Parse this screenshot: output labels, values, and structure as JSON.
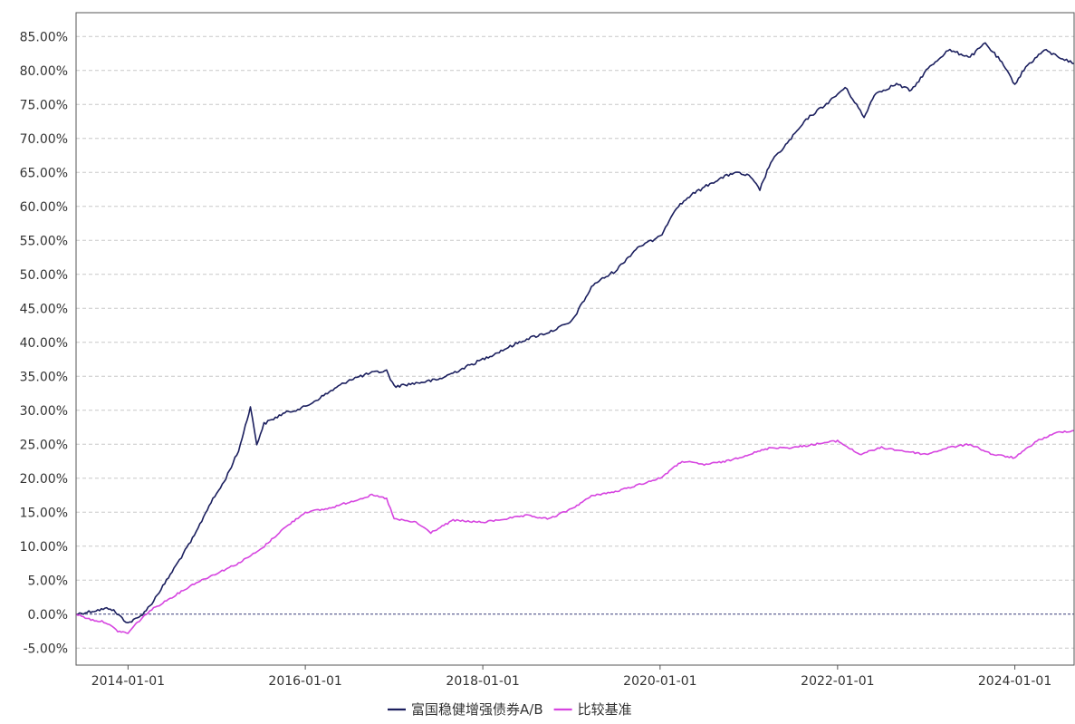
{
  "chart_data": {
    "type": "line",
    "title": "",
    "xlabel": "",
    "ylabel": "",
    "x_ticks": [
      "2014-01-01",
      "2016-01-01",
      "2018-01-01",
      "2020-01-01",
      "2022-01-01",
      "2024-01-01"
    ],
    "y_ticks": [
      "-5.00%",
      "0.00%",
      "5.00%",
      "10.00%",
      "15.00%",
      "20.00%",
      "25.00%",
      "30.00%",
      "35.00%",
      "40.00%",
      "45.00%",
      "50.00%",
      "55.00%",
      "60.00%",
      "65.00%",
      "70.00%",
      "75.00%",
      "80.00%",
      "85.00%"
    ],
    "xlim": [
      "2013-06-01",
      "2024-09-01"
    ],
    "ylim": [
      -7.5,
      88.5
    ],
    "grid": "horizontal dashed",
    "legend_position": "bottom-center",
    "colors": {
      "fund": "#1b1f5e",
      "benchmark": "#d645e0",
      "zero_line": "#3a3f7a",
      "grid": "#c8c8c8",
      "axis": "#555555"
    },
    "series": [
      {
        "name": "富国稳健增强债券A/B",
        "color": "#1b1f5e",
        "points": [
          [
            "2013-06-01",
            0.0
          ],
          [
            "2013-08-15",
            0.5
          ],
          [
            "2013-10-20",
            0.9
          ],
          [
            "2013-12-15",
            -0.8
          ],
          [
            "2014-01-01",
            -1.3
          ],
          [
            "2014-02-15",
            -0.5
          ],
          [
            "2014-04-01",
            1.2
          ],
          [
            "2014-06-01",
            4.5
          ],
          [
            "2014-08-01",
            8.0
          ],
          [
            "2014-10-01",
            11.5
          ],
          [
            "2014-12-01",
            16.0
          ],
          [
            "2015-02-01",
            19.5
          ],
          [
            "2015-04-01",
            24.0
          ],
          [
            "2015-05-20",
            30.5
          ],
          [
            "2015-06-15",
            25.0
          ],
          [
            "2015-07-15",
            28.0
          ],
          [
            "2015-10-01",
            29.5
          ],
          [
            "2016-01-01",
            30.5
          ],
          [
            "2016-04-01",
            32.5
          ],
          [
            "2016-07-01",
            34.5
          ],
          [
            "2016-10-01",
            35.5
          ],
          [
            "2016-12-01",
            35.8
          ],
          [
            "2017-01-01",
            33.5
          ],
          [
            "2017-04-01",
            34.0
          ],
          [
            "2017-07-01",
            34.5
          ],
          [
            "2017-10-01",
            36.0
          ],
          [
            "2018-01-01",
            37.5
          ],
          [
            "2018-04-01",
            39.0
          ],
          [
            "2018-07-01",
            40.5
          ],
          [
            "2018-10-01",
            41.5
          ],
          [
            "2019-01-01",
            43.0
          ],
          [
            "2019-04-01",
            48.5
          ],
          [
            "2019-07-01",
            50.5
          ],
          [
            "2019-10-01",
            54.0
          ],
          [
            "2020-01-01",
            55.5
          ],
          [
            "2020-03-01",
            59.5
          ],
          [
            "2020-05-01",
            61.5
          ],
          [
            "2020-08-01",
            63.5
          ],
          [
            "2020-11-01",
            65.0
          ],
          [
            "2021-01-01",
            64.5
          ],
          [
            "2021-02-15",
            62.5
          ],
          [
            "2021-04-01",
            66.5
          ],
          [
            "2021-06-01",
            69.0
          ],
          [
            "2021-09-01",
            73.0
          ],
          [
            "2021-12-01",
            75.5
          ],
          [
            "2022-02-01",
            77.5
          ],
          [
            "2022-03-20",
            75.0
          ],
          [
            "2022-04-20",
            73.0
          ],
          [
            "2022-06-01",
            76.5
          ],
          [
            "2022-09-01",
            78.0
          ],
          [
            "2022-11-01",
            77.0
          ],
          [
            "2023-01-01",
            80.0
          ],
          [
            "2023-04-01",
            83.0
          ],
          [
            "2023-07-01",
            82.0
          ],
          [
            "2023-09-01",
            84.0
          ],
          [
            "2023-11-01",
            81.5
          ],
          [
            "2024-01-01",
            78.0
          ],
          [
            "2024-02-15",
            80.5
          ],
          [
            "2024-05-01",
            83.0
          ],
          [
            "2024-07-01",
            82.0
          ],
          [
            "2024-09-01",
            81.0
          ]
        ]
      },
      {
        "name": "比较基准",
        "color": "#d645e0",
        "points": [
          [
            "2013-06-01",
            0.0
          ],
          [
            "2013-08-01",
            -0.8
          ],
          [
            "2013-10-01",
            -1.2
          ],
          [
            "2013-11-20",
            -2.5
          ],
          [
            "2014-01-01",
            -2.8
          ],
          [
            "2014-02-01",
            -1.5
          ],
          [
            "2014-04-01",
            0.5
          ],
          [
            "2014-07-01",
            2.5
          ],
          [
            "2014-10-01",
            4.5
          ],
          [
            "2015-01-01",
            6.0
          ],
          [
            "2015-04-01",
            7.5
          ],
          [
            "2015-07-01",
            9.5
          ],
          [
            "2015-10-01",
            12.5
          ],
          [
            "2016-01-01",
            15.0
          ],
          [
            "2016-04-01",
            15.5
          ],
          [
            "2016-07-01",
            16.5
          ],
          [
            "2016-10-01",
            17.5
          ],
          [
            "2016-12-01",
            17.0
          ],
          [
            "2017-01-01",
            14.0
          ],
          [
            "2017-04-01",
            13.5
          ],
          [
            "2017-06-01",
            12.0
          ],
          [
            "2017-09-01",
            13.8
          ],
          [
            "2018-01-01",
            13.5
          ],
          [
            "2018-04-01",
            14.0
          ],
          [
            "2018-07-01",
            14.5
          ],
          [
            "2018-10-01",
            14.0
          ],
          [
            "2019-01-01",
            15.5
          ],
          [
            "2019-04-01",
            17.5
          ],
          [
            "2019-07-01",
            18.0
          ],
          [
            "2019-10-01",
            19.0
          ],
          [
            "2020-01-01",
            20.0
          ],
          [
            "2020-04-01",
            22.5
          ],
          [
            "2020-07-01",
            22.0
          ],
          [
            "2020-10-01",
            22.5
          ],
          [
            "2021-01-01",
            23.5
          ],
          [
            "2021-04-01",
            24.5
          ],
          [
            "2021-07-01",
            24.5
          ],
          [
            "2021-10-01",
            25.0
          ],
          [
            "2022-01-01",
            25.5
          ],
          [
            "2022-04-01",
            23.5
          ],
          [
            "2022-07-01",
            24.5
          ],
          [
            "2022-10-01",
            24.0
          ],
          [
            "2023-01-01",
            23.5
          ],
          [
            "2023-04-01",
            24.5
          ],
          [
            "2023-07-01",
            25.0
          ],
          [
            "2023-10-01",
            23.5
          ],
          [
            "2024-01-01",
            23.0
          ],
          [
            "2024-04-01",
            25.5
          ],
          [
            "2024-07-01",
            26.8
          ],
          [
            "2024-09-01",
            27.0
          ]
        ]
      }
    ]
  }
}
